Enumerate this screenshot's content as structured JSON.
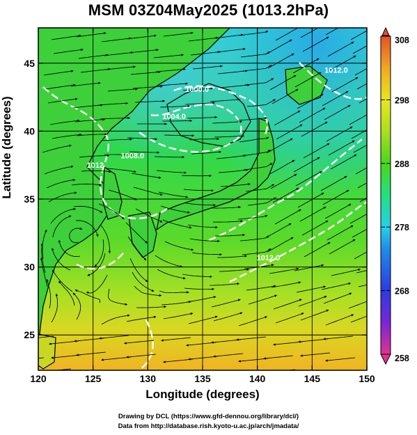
{
  "title": "MSM 03Z04May2025 (1013.2hPa)",
  "map": {
    "xlabel": "Longitude (degrees)",
    "ylabel": "Latitude  (degrees)",
    "lon_range": [
      120,
      150
    ],
    "lat_range": [
      22.4,
      47.6
    ],
    "lon_ticks": [
      "120",
      "125",
      "130",
      "135",
      "140",
      "145",
      "150"
    ],
    "lat_ticks": [
      "25",
      "30",
      "35",
      "40",
      "45"
    ],
    "grid": true,
    "isobars": [
      {
        "label": "1008.0",
        "lon": 128.6,
        "lat": 38.0
      },
      {
        "label": "1004.0",
        "lon": 132.4,
        "lat": 40.9
      },
      {
        "label": "1000.0",
        "lon": 134.5,
        "lat": 42.9
      },
      {
        "label": "1012",
        "lon": 125.2,
        "lat": 37.3
      },
      {
        "label": "1012.0",
        "lon": 141.0,
        "lat": 30.5
      },
      {
        "label": "1012.0",
        "lon": 147.2,
        "lat": 44.3
      }
    ]
  },
  "colorbar": {
    "ticks": [
      "308",
      "298",
      "288",
      "278",
      "268",
      "258"
    ],
    "colors": [
      "#e0338f",
      "#4a2ae0",
      "#1e8ce8",
      "#28d0e8",
      "#22e080",
      "#48d818",
      "#a8e020",
      "#e8e620",
      "#f0a822",
      "#e85028"
    ]
  },
  "credits": {
    "line1": "Drawing by DCL (https://www.gfd-dennou.org/library/dcl/)",
    "line2": "Data from http://database.rish.kyoto-u.ac.jp/arch/jmadata/"
  }
}
